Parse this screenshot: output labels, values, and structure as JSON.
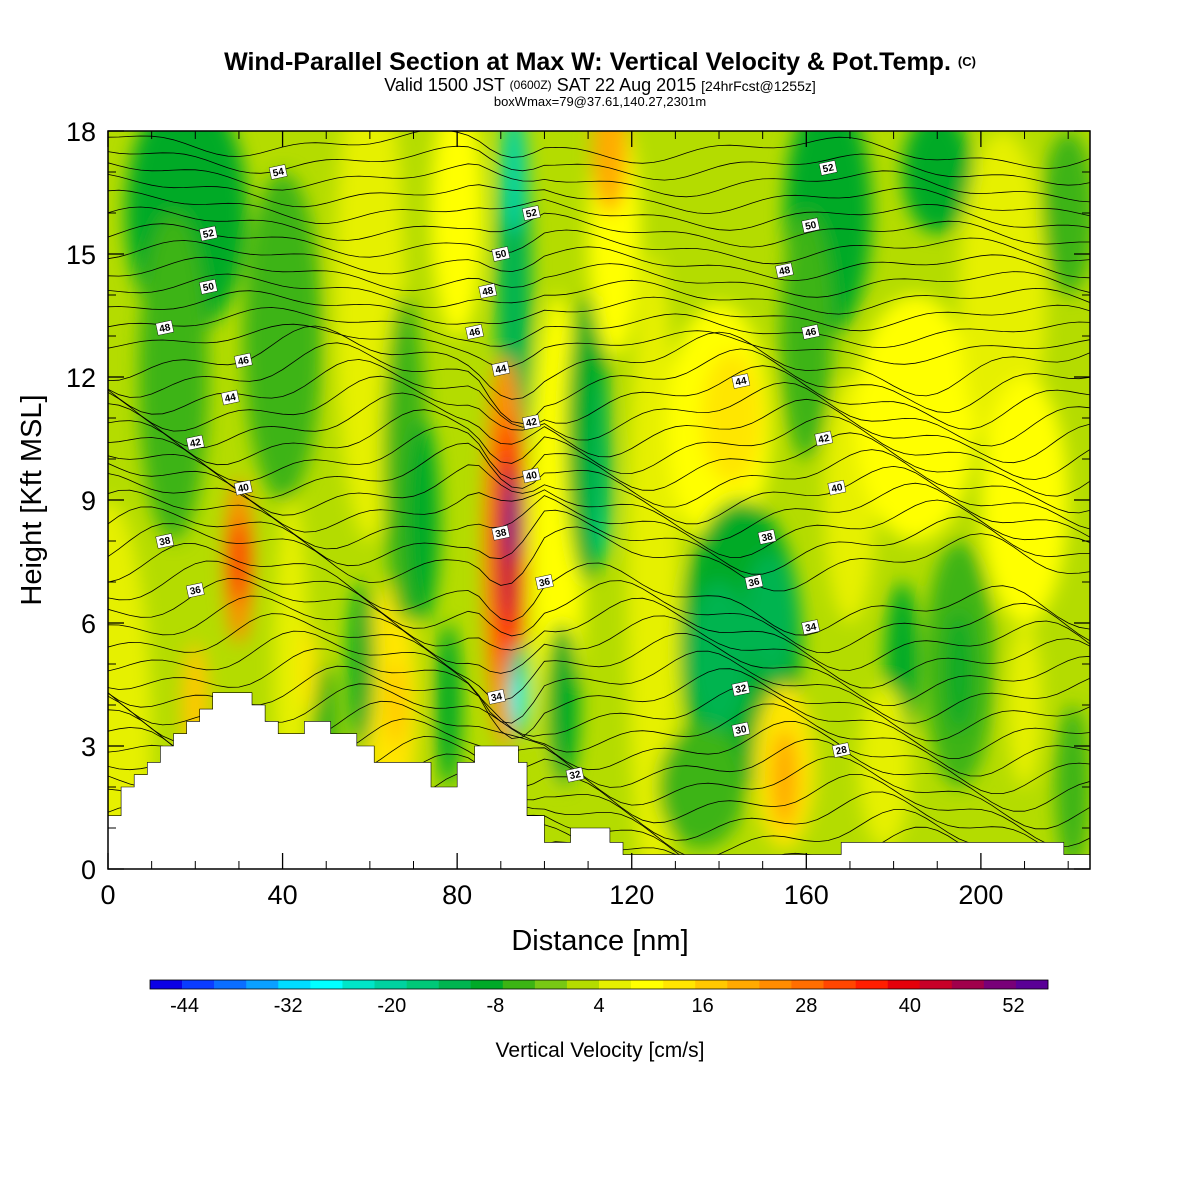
{
  "chart_data": {
    "type": "heatmap",
    "title": "Wind-Parallel Section at Max W: Vertical Velocity & Pot.Temp.",
    "title_mark": "(C)",
    "subtitle_main": "Valid 1500 JST",
    "subtitle_small_1": "(0600Z)",
    "subtitle_date": "SAT 22 Aug 2015",
    "subtitle_small_2": "[24hrFcst@1255z]",
    "subtitle_line2": "boxWmax=79@37.61,140.27,2301m",
    "xlabel": "Distance [nm]",
    "ylabel": "Height [Kft MSL]",
    "xlim": [
      0,
      225
    ],
    "ylim": [
      0,
      18
    ],
    "x_ticks": [
      "0",
      "40",
      "80",
      "120",
      "160",
      "200"
    ],
    "y_ticks": [
      "0",
      "3",
      "6",
      "9",
      "12",
      "15",
      "18"
    ],
    "colorbar": {
      "label": "Vertical Velocity [cm/s]",
      "tick_labels": [
        "-44",
        "-32",
        "-20",
        "-8",
        "4",
        "16",
        "28",
        "40",
        "52"
      ],
      "range": [
        -48,
        56
      ],
      "colors": [
        "#0b00e6",
        "#0a3cff",
        "#0a6eff",
        "#0aa0ff",
        "#00ddff",
        "#00ffff",
        "#00e6c8",
        "#00d2a0",
        "#00c878",
        "#00b450",
        "#00aa28",
        "#3cb414",
        "#78c814",
        "#b4dc00",
        "#e6f000",
        "#ffff00",
        "#ffe600",
        "#ffc800",
        "#ffaa00",
        "#ff8c00",
        "#ff6e00",
        "#ff4600",
        "#ff1e00",
        "#e6000a",
        "#c80028",
        "#a0004b",
        "#780078",
        "#5a0096"
      ]
    },
    "vertical_velocity_features": [
      {
        "x": 92,
        "y": 8,
        "value": 56
      },
      {
        "x": 30,
        "y": 7.5,
        "value": 36
      },
      {
        "x": 94,
        "y": 4,
        "value": -28
      },
      {
        "x": 93,
        "y": 15,
        "value": -20
      },
      {
        "x": 112,
        "y": 10,
        "value": -16
      },
      {
        "x": 145,
        "y": 5.5,
        "value": -12
      },
      {
        "x": 140,
        "y": 11,
        "value": 14
      },
      {
        "x": 155,
        "y": 2.5,
        "value": 20
      },
      {
        "x": 115,
        "y": 17,
        "value": 20
      }
    ],
    "contour_labels": [
      {
        "value": "54",
        "x": 39,
        "y": 17.0
      },
      {
        "value": "52",
        "x": 23,
        "y": 15.5
      },
      {
        "value": "50",
        "x": 23,
        "y": 14.2
      },
      {
        "value": "48",
        "x": 13,
        "y": 13.2
      },
      {
        "value": "46",
        "x": 31,
        "y": 12.4
      },
      {
        "value": "44",
        "x": 28,
        "y": 11.5
      },
      {
        "value": "42",
        "x": 20,
        "y": 10.4
      },
      {
        "value": "40",
        "x": 31,
        "y": 9.3
      },
      {
        "value": "38",
        "x": 13,
        "y": 8.0
      },
      {
        "value": "36",
        "x": 20,
        "y": 6.8
      },
      {
        "value": "52",
        "x": 97,
        "y": 16.0
      },
      {
        "value": "50",
        "x": 90,
        "y": 15.0
      },
      {
        "value": "48",
        "x": 87,
        "y": 14.1
      },
      {
        "value": "46",
        "x": 84,
        "y": 13.1
      },
      {
        "value": "44",
        "x": 90,
        "y": 12.2
      },
      {
        "value": "42",
        "x": 97,
        "y": 10.9
      },
      {
        "value": "40",
        "x": 97,
        "y": 9.6
      },
      {
        "value": "38",
        "x": 90,
        "y": 8.2
      },
      {
        "value": "36",
        "x": 100,
        "y": 7.0
      },
      {
        "value": "34",
        "x": 89,
        "y": 4.2
      },
      {
        "value": "32",
        "x": 107,
        "y": 2.3
      },
      {
        "value": "52",
        "x": 165,
        "y": 17.1
      },
      {
        "value": "50",
        "x": 161,
        "y": 15.7
      },
      {
        "value": "48",
        "x": 155,
        "y": 14.6
      },
      {
        "value": "46",
        "x": 161,
        "y": 13.1
      },
      {
        "value": "44",
        "x": 145,
        "y": 11.9
      },
      {
        "value": "42",
        "x": 164,
        "y": 10.5
      },
      {
        "value": "40",
        "x": 167,
        "y": 9.3
      },
      {
        "value": "38",
        "x": 151,
        "y": 8.1
      },
      {
        "value": "36",
        "x": 148,
        "y": 7.0
      },
      {
        "value": "34",
        "x": 161,
        "y": 5.9
      },
      {
        "value": "32",
        "x": 145,
        "y": 4.4
      },
      {
        "value": "30",
        "x": 145,
        "y": 3.4
      },
      {
        "value": "28",
        "x": 168,
        "y": 2.9
      }
    ]
  }
}
